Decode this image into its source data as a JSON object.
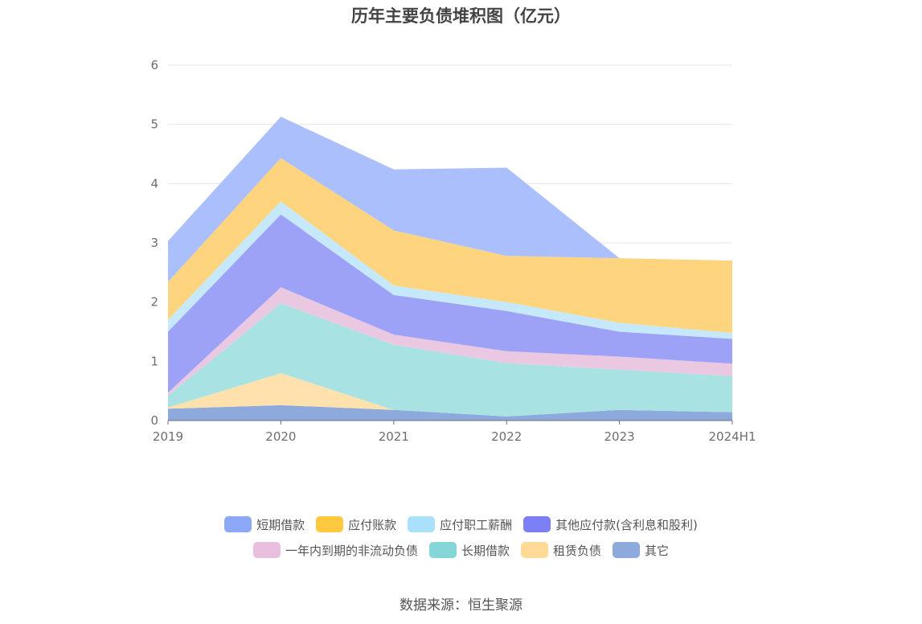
{
  "chart_data": {
    "type": "area",
    "stacked": true,
    "title": "历年主要负债堆积图（亿元）",
    "categories": [
      "2019",
      "2020",
      "2021",
      "2022",
      "2023",
      "2024H1"
    ],
    "ylim": [
      0,
      6
    ],
    "yticks": [
      "0",
      "1",
      "2",
      "3",
      "4",
      "5",
      "6"
    ],
    "grid": true,
    "legend_position": "bottom",
    "series": [
      {
        "name": "其它",
        "color": "#8eaadd",
        "values": [
          0.2,
          0.26,
          0.18,
          0.07,
          0.18,
          0.14
        ]
      },
      {
        "name": "租赁负债",
        "color": "#ffe1ad",
        "values": [
          0.02,
          0.54,
          0.0,
          0.0,
          0.0,
          0.0
        ]
      },
      {
        "name": "长期借款",
        "color": "#a9e2e3",
        "values": [
          0.2,
          1.18,
          1.1,
          0.9,
          0.68,
          0.61
        ]
      },
      {
        "name": "一年内到期的非流动负债",
        "color": "#eac8e2",
        "values": [
          0.05,
          0.27,
          0.17,
          0.2,
          0.22,
          0.21
        ]
      },
      {
        "name": "其他应付款(含利息和股利)",
        "color": "#9ea2f6",
        "values": [
          1.03,
          1.23,
          0.67,
          0.68,
          0.42,
          0.42
        ]
      },
      {
        "name": "应付职工薪酬",
        "color": "#c5e9fa",
        "values": [
          0.2,
          0.22,
          0.16,
          0.15,
          0.15,
          0.1
        ]
      },
      {
        "name": "应付账款",
        "color": "#fed57e",
        "values": [
          0.64,
          0.73,
          0.93,
          0.78,
          1.09,
          1.22
        ]
      },
      {
        "name": "短期借款",
        "color": "#abbffd",
        "values": [
          0.69,
          0.7,
          1.03,
          1.49,
          0.0,
          0.0
        ]
      }
    ]
  },
  "legend": {
    "row1": [
      {
        "label": "短期借款",
        "color": "#8ca9f8"
      },
      {
        "label": "应付账款",
        "color": "#ffc93f"
      },
      {
        "label": "应付职工薪酬",
        "color": "#a9e1fb"
      },
      {
        "label": "其他应付款(含利息和股利)",
        "color": "#7d80f4"
      }
    ],
    "row2": [
      {
        "label": "一年内到期的非流动负债",
        "color": "#e9bfe0"
      },
      {
        "label": "长期借款",
        "color": "#84d6d7"
      },
      {
        "label": "租赁负债",
        "color": "#ffd996"
      },
      {
        "label": "其它",
        "color": "#8eaadd"
      }
    ]
  },
  "source": "数据来源：恒生聚源"
}
